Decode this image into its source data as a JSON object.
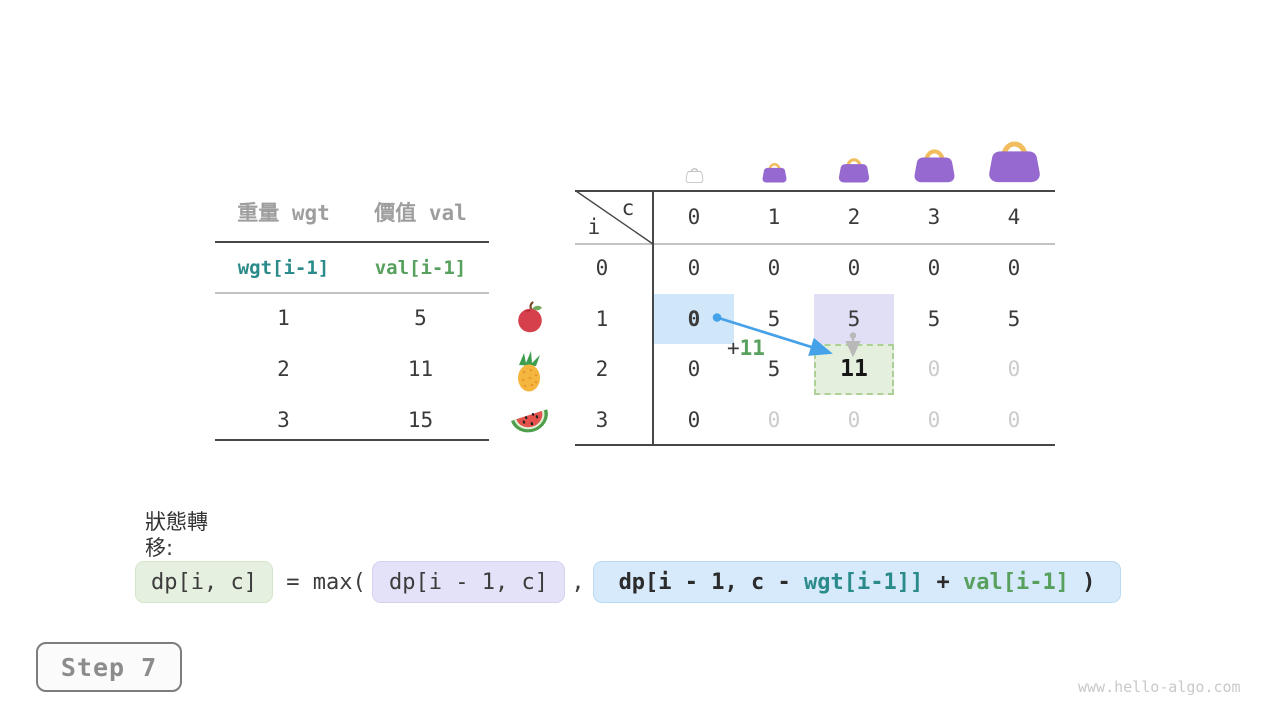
{
  "items_table": {
    "headers": {
      "weight": "重量 wgt",
      "value": "價值 val"
    },
    "var_row": {
      "weight": "wgt[i-1]",
      "value": "val[i-1]"
    },
    "rows": [
      {
        "weight": "1",
        "value": "5",
        "fruit": "apple-icon"
      },
      {
        "weight": "2",
        "value": "11",
        "fruit": "pineapple-icon"
      },
      {
        "weight": "3",
        "value": "15",
        "fruit": "watermelon-icon"
      }
    ]
  },
  "dp_table": {
    "corner": {
      "col_label": "c",
      "row_label": "i"
    },
    "col_headers": [
      "0",
      "1",
      "2",
      "3",
      "4"
    ],
    "row_headers": [
      "0",
      "1",
      "2",
      "3"
    ],
    "values": [
      [
        "0",
        "0",
        "0",
        "0",
        "0"
      ],
      [
        "0",
        "5",
        "5",
        "5",
        "5"
      ],
      [
        "0",
        "5",
        "11",
        "0",
        "0"
      ],
      [
        "0",
        "0",
        "0",
        "0",
        "0"
      ]
    ],
    "states": [
      [
        "",
        "",
        "",
        "",
        ""
      ],
      [
        "src",
        "",
        "lav",
        "",
        ""
      ],
      [
        "",
        "",
        "dest",
        "pending",
        "pending"
      ],
      [
        "",
        "pending",
        "pending",
        "pending",
        "pending"
      ]
    ],
    "capacity_icons": [
      "empty-bag-icon",
      "bag-icon",
      "bag-icon",
      "bag-icon",
      "bag-icon"
    ],
    "annotation": {
      "plus": "+",
      "value": "11"
    }
  },
  "formula": {
    "label": "狀態轉移:",
    "lhs": "dp[i, c]",
    "operator": "= max(",
    "keep_option": "dp[i - 1, c]",
    "separator": ",",
    "take": {
      "p1": "dp[i - 1, c - ",
      "p2": "wgt[i-1]]",
      "p3": " + ",
      "p4": "val[i-1]",
      "p5": " )"
    }
  },
  "step_badge": {
    "label": "Step 7"
  },
  "watermark": "www.hello-algo.com",
  "colors": {
    "teal": "#2b8a8a",
    "green": "#57a05d",
    "gray_text": "#9e9e9e",
    "pending": "#cbcbcb",
    "line_dark": "#474747",
    "line_light": "#c3c3c3",
    "hl_blue": "#cfe7f8",
    "hl_lavender": "#e0dff6",
    "hl_green": "#e4efde",
    "green_dash": "#aed096",
    "formula_green_bg": "#e6f0e0",
    "formula_lavender_bg": "#e4e2f8",
    "formula_blue_bg": "#d6eafb",
    "blue_arrow": "#45a1e8",
    "gray_arrow": "#b9b9b9",
    "bag_purple": "#9569cf",
    "bag_gold": "#f2bd5e",
    "badge_border": "#7d7d7d",
    "badge_text": "#8c8c8c",
    "watermark": "#c9c9c9"
  }
}
